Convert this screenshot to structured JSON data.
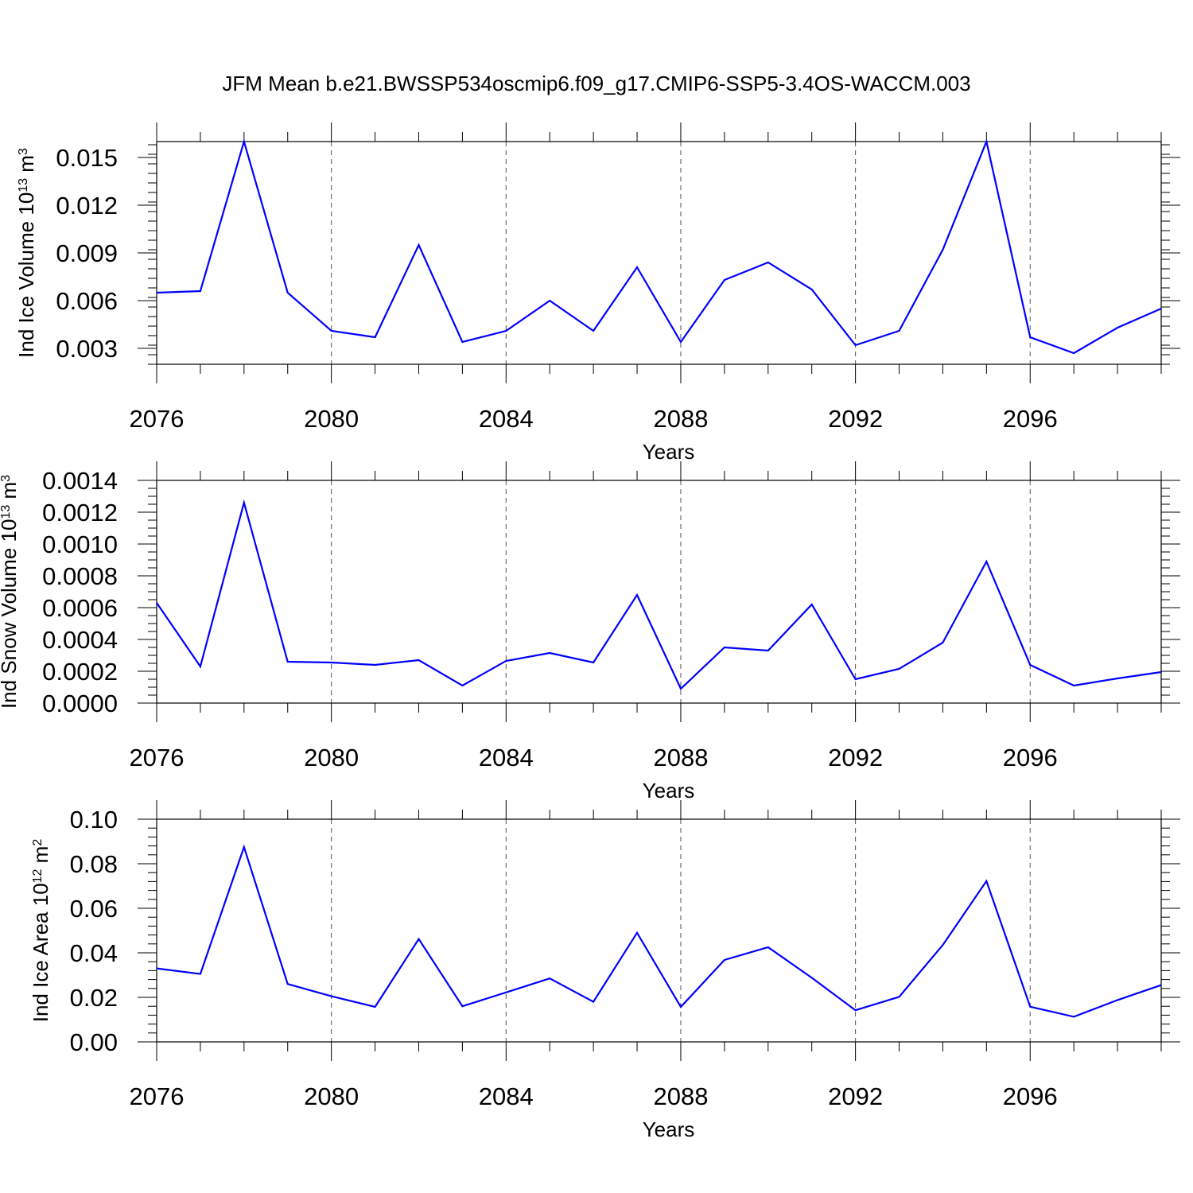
{
  "figure": {
    "title": "JFM Mean b.e21.BWSSP534oscmip6.f09_g17.CMIP6-SSP5-3.4OS-WACCM.003"
  },
  "chart_data": [
    {
      "type": "line",
      "xlabel": "Years",
      "ylabel": "Ind Ice Volume 10",
      "ylabel_exp": "13",
      "ylabel_unit": " m",
      "ylabel_unit_exp": "3",
      "xlim": [
        2076,
        2099
      ],
      "ylim": [
        0.002,
        0.016
      ],
      "x_ticks": [
        2076,
        2080,
        2084,
        2088,
        2092,
        2096
      ],
      "x_tick_labels": [
        "2076",
        "2080",
        "2084",
        "2088",
        "2092",
        "2096"
      ],
      "y_ticks": [
        0.003,
        0.006,
        0.009,
        0.012,
        0.015
      ],
      "y_tick_labels": [
        "0.003",
        "0.006",
        "0.009",
        "0.012",
        "0.015"
      ],
      "y_minor_step": 0.0006,
      "grid": "dashed vertical at major x ticks",
      "color": "#0000ff",
      "x": [
        2076,
        2077,
        2078,
        2079,
        2080,
        2081,
        2082,
        2083,
        2084,
        2085,
        2086,
        2087,
        2088,
        2089,
        2090,
        2091,
        2092,
        2093,
        2094,
        2095,
        2096,
        2097,
        2098,
        2099
      ],
      "values": [
        0.0065,
        0.0066,
        0.016,
        0.0065,
        0.0041,
        0.0037,
        0.0095,
        0.0034,
        0.0041,
        0.006,
        0.0041,
        0.0081,
        0.0034,
        0.0073,
        0.0084,
        0.0067,
        0.0032,
        0.0041,
        0.0092,
        0.016,
        0.0037,
        0.0027,
        0.0043,
        0.0055
      ]
    },
    {
      "type": "line",
      "xlabel": "Years",
      "ylabel": "Ind Snow Volume 10",
      "ylabel_exp": "13",
      "ylabel_unit": " m",
      "ylabel_unit_exp": "3",
      "xlim": [
        2076,
        2099
      ],
      "ylim": [
        0.0,
        0.0014
      ],
      "x_ticks": [
        2076,
        2080,
        2084,
        2088,
        2092,
        2096
      ],
      "x_tick_labels": [
        "2076",
        "2080",
        "2084",
        "2088",
        "2092",
        "2096"
      ],
      "y_ticks": [
        0.0,
        0.0002,
        0.0004,
        0.0006,
        0.0008,
        0.001,
        0.0012,
        0.0014
      ],
      "y_tick_labels": [
        "0.0000",
        "0.0002",
        "0.0004",
        "0.0006",
        "0.0008",
        "0.0010",
        "0.0012",
        "0.0014"
      ],
      "y_minor_step": 5e-05,
      "grid": "dashed vertical at major x ticks",
      "color": "#0000ff",
      "x": [
        2076,
        2077,
        2078,
        2079,
        2080,
        2081,
        2082,
        2083,
        2084,
        2085,
        2086,
        2087,
        2088,
        2089,
        2090,
        2091,
        2092,
        2093,
        2094,
        2095,
        2096,
        2097,
        2098,
        2099
      ],
      "values": [
        0.00063,
        0.00023,
        0.00126,
        0.00026,
        0.000255,
        0.00024,
        0.00027,
        0.00011,
        0.000265,
        0.000315,
        0.000255,
        0.00068,
        9e-05,
        0.00035,
        0.00033,
        0.00062,
        0.00015,
        0.000215,
        0.00038,
        0.00089,
        0.00024,
        0.00011,
        0.000155,
        0.000195
      ]
    },
    {
      "type": "line",
      "xlabel": "Years",
      "ylabel": "Ind Ice Area 10",
      "ylabel_exp": "12",
      "ylabel_unit": " m",
      "ylabel_unit_exp": "2",
      "xlim": [
        2076,
        2099
      ],
      "ylim": [
        0.0,
        0.1
      ],
      "x_ticks": [
        2076,
        2080,
        2084,
        2088,
        2092,
        2096
      ],
      "x_tick_labels": [
        "2076",
        "2080",
        "2084",
        "2088",
        "2092",
        "2096"
      ],
      "y_ticks": [
        0.0,
        0.02,
        0.04,
        0.06,
        0.08,
        0.1
      ],
      "y_tick_labels": [
        "0.00",
        "0.02",
        "0.04",
        "0.06",
        "0.08",
        "0.10"
      ],
      "y_minor_step": 0.004,
      "grid": "dashed vertical at major x ticks",
      "color": "#0000ff",
      "x": [
        2076,
        2077,
        2078,
        2079,
        2080,
        2081,
        2082,
        2083,
        2084,
        2085,
        2086,
        2087,
        2088,
        2089,
        2090,
        2091,
        2092,
        2093,
        2094,
        2095,
        2096,
        2097,
        2098,
        2099
      ],
      "values": [
        0.033,
        0.0305,
        0.0875,
        0.026,
        0.0205,
        0.0157,
        0.0462,
        0.016,
        0.0222,
        0.0285,
        0.018,
        0.049,
        0.0157,
        0.0368,
        0.0425,
        0.0288,
        0.0142,
        0.0202,
        0.0435,
        0.0722,
        0.0158,
        0.0113,
        0.0188,
        0.0255
      ]
    }
  ]
}
